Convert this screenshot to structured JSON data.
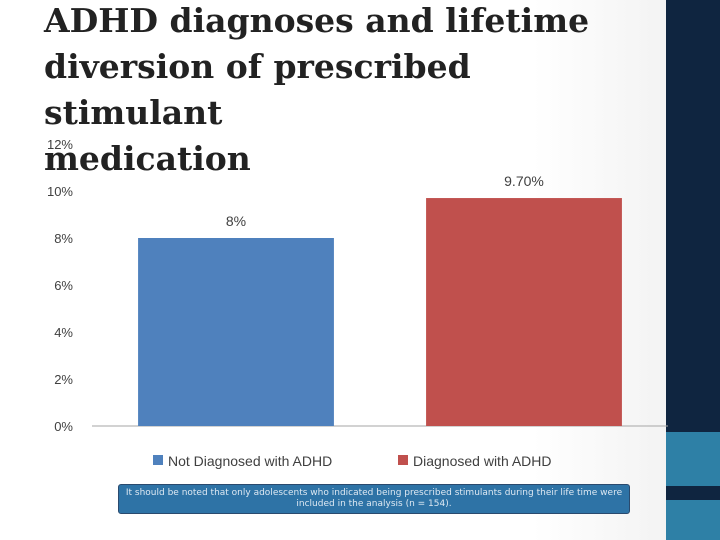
{
  "slide": {
    "title_lines": [
      "ADHD diagnoses and lifetime",
      "diversion of prescribed stimulant",
      "medication"
    ],
    "note": "It should be noted that only adolescents who indicated being prescribed stimulants during their life time were included in the analysis (n = 154).",
    "colors": {
      "sidebar": "#0f2540",
      "sidebar_accent": "#2e80a6",
      "note_bg": "#2e73a6"
    }
  },
  "chart_data": {
    "type": "bar",
    "categories": [
      "Not Diagnosed with ADHD",
      "Diagnosed with ADHD"
    ],
    "values": [
      8,
      9.7
    ],
    "data_labels": [
      "8%",
      "9.70%"
    ],
    "colors": [
      "#4f81bd",
      "#c0504d"
    ],
    "ylim": [
      0,
      12
    ],
    "yticks": [
      0,
      2,
      4,
      6,
      8,
      10,
      12
    ],
    "ytick_labels": [
      "0%",
      "2%",
      "4%",
      "6%",
      "8%",
      "10%",
      "12%"
    ],
    "legend": [
      "Not Diagnosed with ADHD",
      "Diagnosed with ADHD"
    ],
    "legend_position": "bottom",
    "grid": false,
    "xlabel": "",
    "ylabel": ""
  }
}
